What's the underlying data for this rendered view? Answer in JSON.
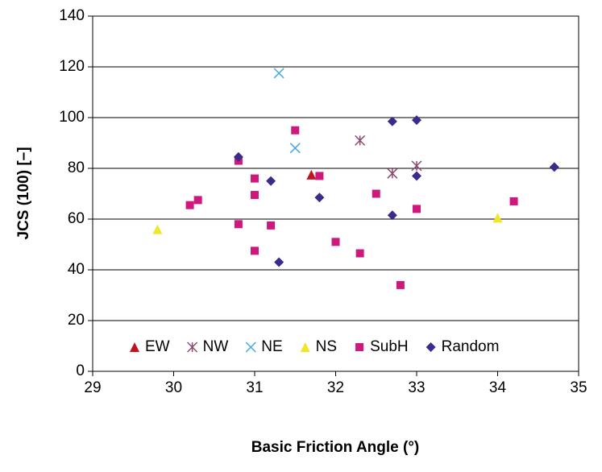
{
  "chart_data": {
    "type": "scatter",
    "x_label": "Basic Friction Angle (°)",
    "y_label": "JCS (100) [–]",
    "xlim": [
      29,
      35
    ],
    "xticks": [
      29,
      30,
      31,
      32,
      33,
      34,
      35
    ],
    "ylim": [
      0,
      140
    ],
    "yticks": [
      0,
      20,
      40,
      60,
      80,
      100,
      120,
      140
    ],
    "grid": true,
    "legend": "bottom",
    "series": [
      {
        "name": "EW",
        "color": "#c0141e",
        "marker": "triangle",
        "x": [
          31.7
        ],
        "values": [
          77.5
        ]
      },
      {
        "name": "NW",
        "color": "#8c4a6e",
        "marker": "asterisk",
        "x": [
          32.3,
          32.7,
          33
        ],
        "values": [
          91,
          78,
          81
        ]
      },
      {
        "name": "NE",
        "color": "#44a8e0",
        "marker": "x",
        "x": [
          31.3,
          31.5
        ],
        "values": [
          117.5,
          88
        ]
      },
      {
        "name": "NS",
        "color": "#f0e628",
        "marker": "triangle",
        "x": [
          29.8,
          34
        ],
        "values": [
          56,
          60.5
        ]
      },
      {
        "name": "SubH",
        "color": "#d0187c",
        "marker": "square",
        "x": [
          30.8,
          31.5,
          31,
          31.8,
          30.2,
          30.3,
          31,
          32.5,
          30.8,
          31.2,
          33,
          34.2,
          31,
          32,
          32.3,
          32.8
        ],
        "values": [
          83,
          95,
          76,
          77,
          65.5,
          67.5,
          69.5,
          70,
          58,
          57.5,
          64,
          67,
          47.5,
          51,
          46.5,
          34
        ]
      },
      {
        "name": "Random",
        "color": "#3c2a8c",
        "marker": "diamond",
        "x": [
          30.8,
          31.2,
          31.8,
          31.3,
          32.7,
          33,
          33,
          32.7,
          34.7
        ],
        "values": [
          84.5,
          75,
          68.5,
          43,
          98.5,
          99,
          77,
          61.5,
          80.5
        ]
      }
    ]
  }
}
